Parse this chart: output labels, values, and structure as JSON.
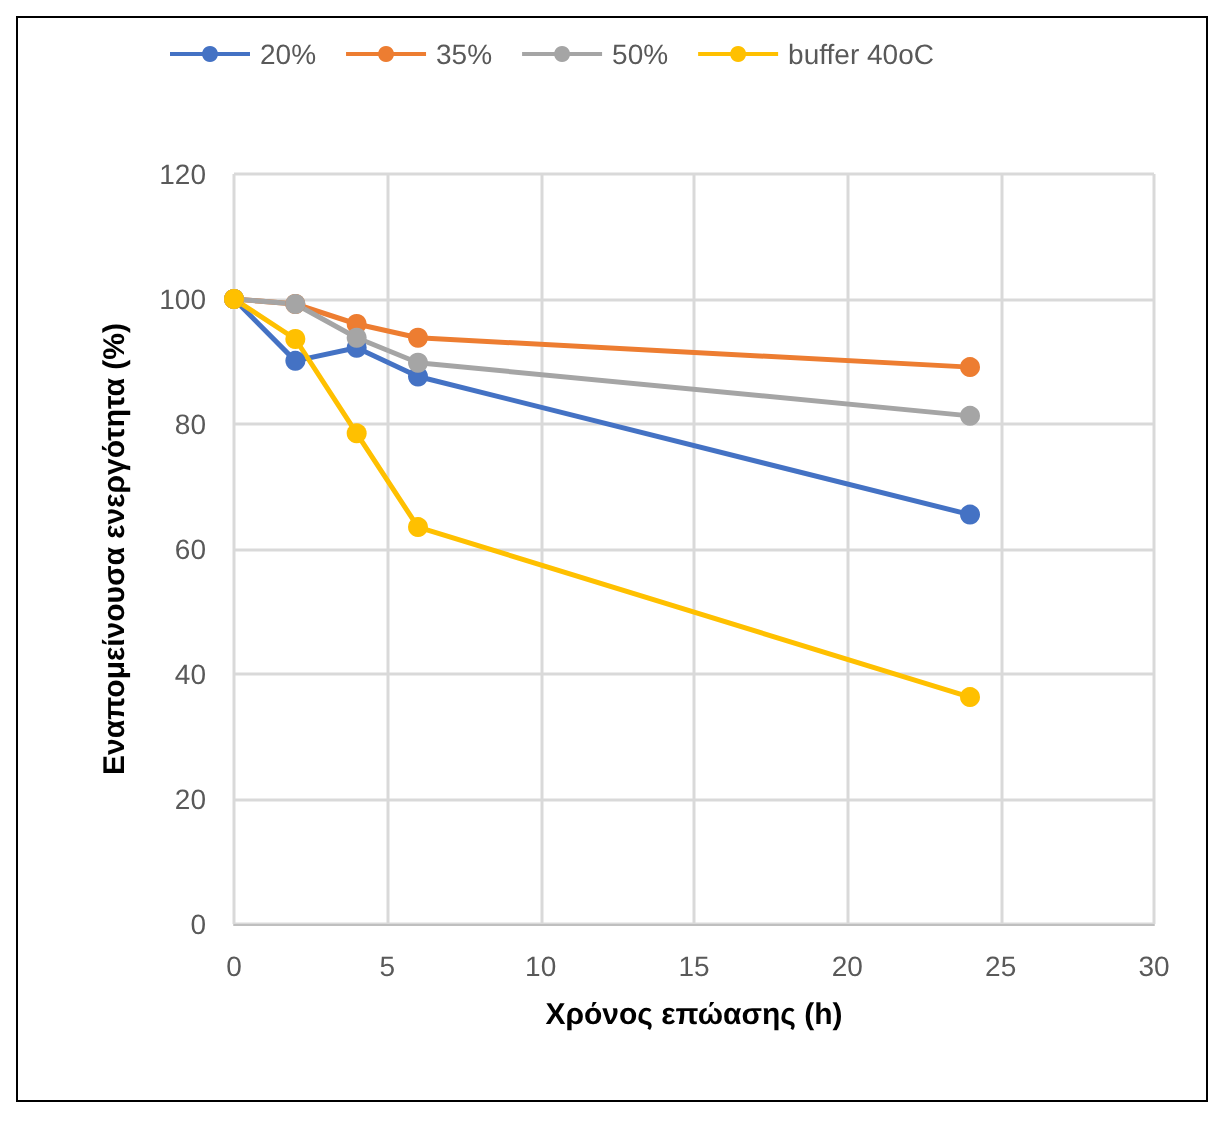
{
  "chart_data": {
    "type": "line",
    "xlabel": "Χρόνος επώασης (h)",
    "ylabel": "Εναπομείνουσα ενεργότητα (%)",
    "x": [
      0,
      2,
      4,
      6,
      24
    ],
    "series": [
      {
        "name": "20%",
        "color": "#4472c4",
        "values": [
          100,
          90.1,
          92.2,
          87.6,
          65.5
        ]
      },
      {
        "name": "35%",
        "color": "#ed7d31",
        "values": [
          100,
          99.2,
          96,
          93.8,
          89.1
        ]
      },
      {
        "name": "50%",
        "color": "#a5a5a5",
        "values": [
          100,
          99.2,
          93.8,
          89.8,
          81.3
        ]
      },
      {
        "name": "buffer 40oC",
        "color": "#ffc000",
        "values": [
          100,
          93.6,
          78.5,
          63.5,
          36.3
        ]
      }
    ],
    "xlim": [
      0,
      30
    ],
    "xticks": [
      0,
      5,
      10,
      15,
      20,
      25,
      30
    ],
    "ylim": [
      0,
      120
    ],
    "yticks": [
      0,
      20,
      40,
      60,
      80,
      100,
      120
    ],
    "grid": true,
    "legend": "top",
    "marker": "circle",
    "line_style": "solid"
  }
}
